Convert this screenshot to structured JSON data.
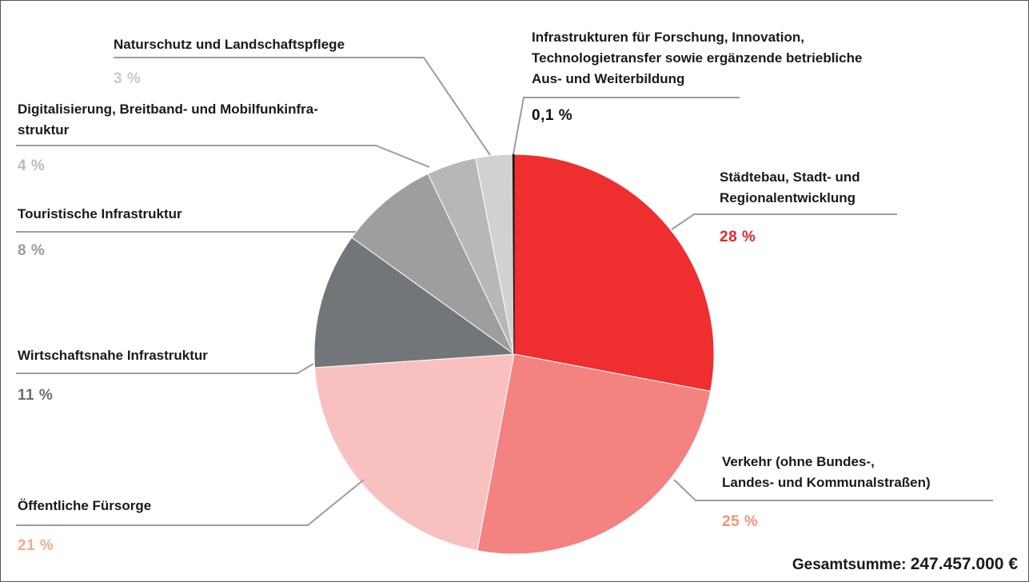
{
  "chart_data": {
    "type": "pie",
    "categories": [
      "Städtebau, Stadt- und\nRegionalentwicklung",
      "Verkehr (ohne Bundes-,\nLandes- und Kommunalstraßen)",
      "Öffentliche Fürsorge",
      "Wirtschaftsnahe Infrastruktur",
      "Touristische Infrastruktur",
      "Digitalisierung, Breitband- und Mobilfunkinfra-\nstruktur",
      "Naturschutz und Landschaftspflege",
      "Infrastrukturen für Forschung, Innovation,\nTechnologietransfer sowie ergänzende betriebliche\nAus- und Weiterbildung"
    ],
    "values": [
      28,
      25,
      21,
      11,
      8,
      4,
      3,
      0.1
    ],
    "value_labels": [
      "28 %",
      "25 %",
      "21 %",
      "11 %",
      "8 %",
      "4 %",
      "3 %",
      "0,1 %"
    ],
    "colors": [
      "#ee2e2f",
      "#f38281",
      "#f8c1c0",
      "#737678",
      "#9c9e9f",
      "#b5b7b8",
      "#d0d2d2",
      "#1a1a1a"
    ],
    "label_colors": [
      "#e8262a",
      "#f39376",
      "#f5a98e",
      "#6b6d6f",
      "#9a9c9d",
      "#b8babb",
      "#c9cbcb",
      "#111111"
    ],
    "total_label": "Gesamtsumme:",
    "total": "247.457.000 €"
  }
}
